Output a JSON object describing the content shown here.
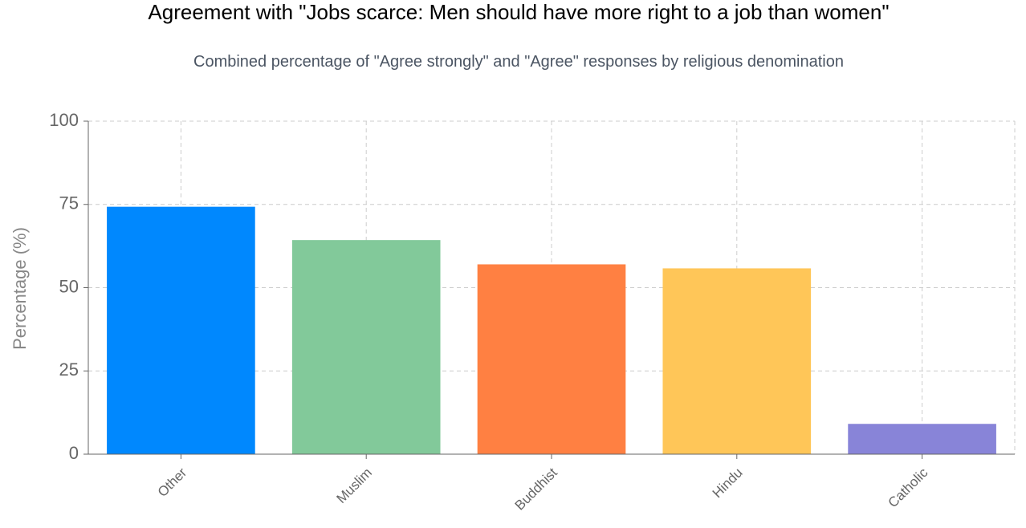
{
  "chart_data": {
    "type": "bar",
    "title": "Agreement with \"Jobs scarce: Men should have more right to a job than women\"",
    "subtitle": "Combined percentage of \"Agree strongly\" and \"Agree\" responses by religious denomination",
    "xlabel": "",
    "ylabel": "Percentage (%)",
    "ylim": [
      0,
      100
    ],
    "yticks": [
      "0",
      "25",
      "50",
      "75",
      "100"
    ],
    "grid": true,
    "categories": [
      "Other",
      "Muslim",
      "Buddhist",
      "Hindu",
      "Catholic"
    ],
    "values": [
      74.3,
      64.3,
      57.0,
      55.8,
      9.1
    ],
    "colors": [
      "#0088FE",
      "#82C99A",
      "#FF8042",
      "#FFC658",
      "#8884D8"
    ]
  }
}
